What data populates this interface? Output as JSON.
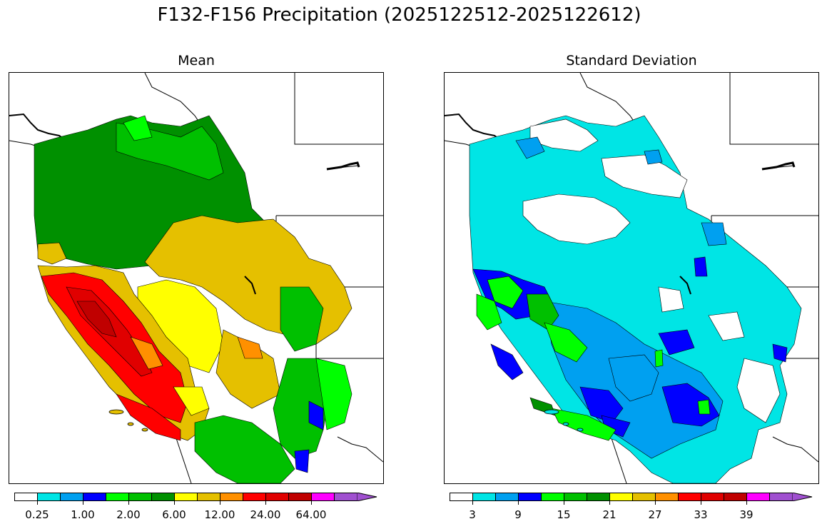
{
  "title": "F132-F156 Precipitation (2025122512-2025122612)",
  "panels": [
    {
      "name": "mean",
      "title": "Mean",
      "colorbar": {
        "colors": [
          "#ffffff",
          "#00e5e5",
          "#00a0f0",
          "#0000ff",
          "#00ff00",
          "#00c000",
          "#009000",
          "#ffff00",
          "#e5c000",
          "#ff9000",
          "#ff0000",
          "#e00000",
          "#c00000",
          "#ff00ff",
          "#a050d0"
        ],
        "tick_labels": [
          "0.25",
          "1.00",
          "2.00",
          "6.00",
          "12.00",
          "24.00",
          "64.00"
        ],
        "extend": "max"
      }
    },
    {
      "name": "standard-deviation",
      "title": "Standard Deviation",
      "colorbar": {
        "colors": [
          "#ffffff",
          "#00e5e5",
          "#00a0f0",
          "#0000ff",
          "#00ff00",
          "#00c000",
          "#009000",
          "#ffff00",
          "#e5c000",
          "#ff9000",
          "#ff0000",
          "#e00000",
          "#c00000",
          "#ff00ff",
          "#a050d0"
        ],
        "tick_labels": [
          "3",
          "9",
          "15",
          "21",
          "27",
          "33",
          "39"
        ],
        "extend": "max"
      }
    }
  ]
}
